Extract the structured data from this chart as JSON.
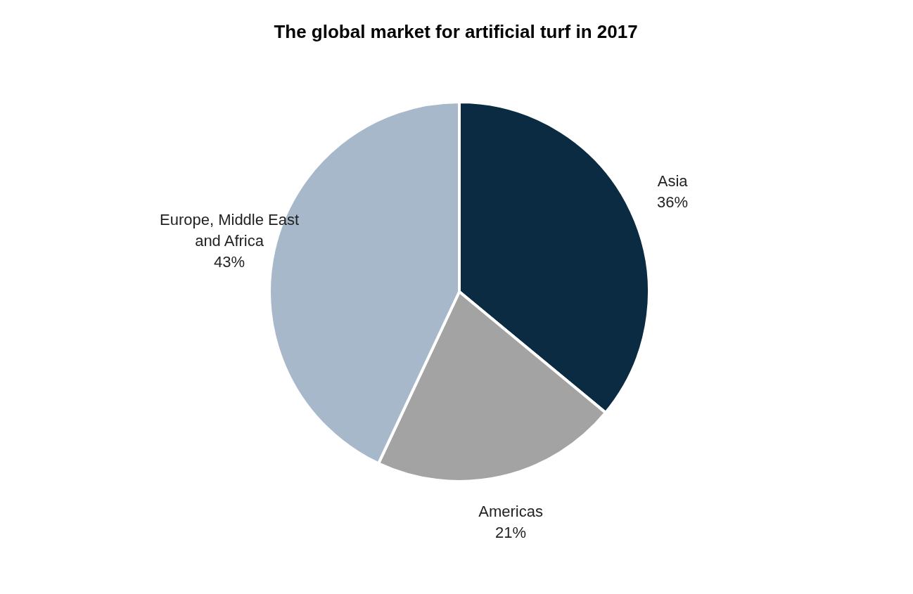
{
  "chart_data": {
    "type": "pie",
    "title": "The global market for artificial turf in 2017",
    "categories": [
      "Asia",
      "Americas",
      "Europe, Middle East and Africa"
    ],
    "values": [
      36,
      21,
      43
    ],
    "colors": [
      "#0a2b42",
      "#a3a3a3",
      "#a7b8cb"
    ],
    "value_labels": [
      "36%",
      "21%",
      "43%"
    ]
  }
}
